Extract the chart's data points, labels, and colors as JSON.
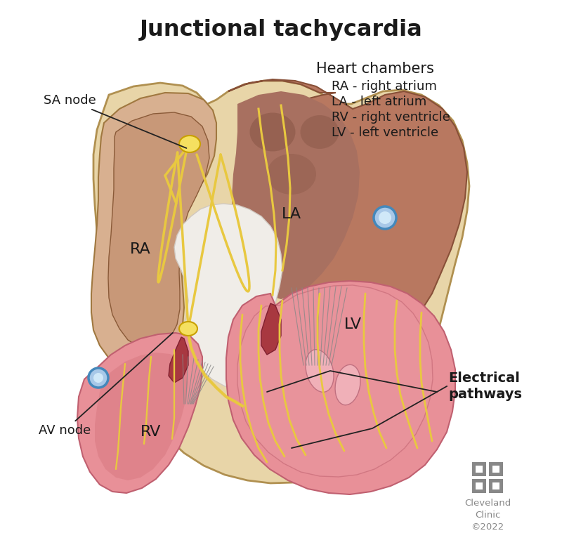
{
  "title": "Junctional tachycardia",
  "title_fontsize": 23,
  "title_fontweight": "bold",
  "bg_color": "#ffffff",
  "outer_heart_color": "#e8d5a8",
  "outer_heart_edge": "#c8b070",
  "ra_wall_color": "#d4a882",
  "ra_cavity_color": "#c89878",
  "la_wall_color": "#b8856a",
  "la_cavity_color": "#a87060",
  "septum_color": "#e8e5e0",
  "rv_color": "#e8909a",
  "lv_color": "#e8909a",
  "ventricular_pink": "#e89098",
  "ventricular_dark": "#c05060",
  "electrical_color": "#e8c840",
  "electrical_edge": "#c8a000",
  "node_color": "#f0d840",
  "blue_vessel_fill": "#a8c8e8",
  "blue_vessel_edge": "#4488bb",
  "text_color": "#1a1a1a",
  "label_fs": 15,
  "annot_fs": 13,
  "legend_title_fs": 15,
  "legend_item_fs": 13,
  "cleveland_color": "#888888",
  "label_sa": "SA node",
  "label_av": "AV node",
  "label_ra": "RA",
  "label_la": "LA",
  "label_rv": "RV",
  "label_lv": "LV",
  "label_ep_line1": "Electrical",
  "label_ep_line2": "pathways",
  "legend_title": "Heart chambers",
  "legend_lines": [
    "RA - right atrium",
    "LA - left atrium",
    "RV - right ventricle",
    "LV - left ventricle"
  ],
  "cleveland_text": "Cleveland\nClinic\n©2022"
}
